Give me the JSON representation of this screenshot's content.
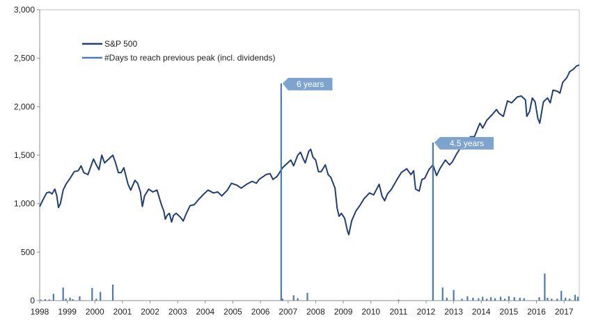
{
  "chart_data": {
    "type": "line",
    "title": "",
    "xlabel": "",
    "ylabel": "",
    "ylim": [
      0,
      3000
    ],
    "xlim": [
      1998.0,
      2017.55
    ],
    "grid": false,
    "legend_position": "top-left",
    "y_ticks": [
      {
        "value": 0,
        "label": "0"
      },
      {
        "value": 500,
        "label": "500"
      },
      {
        "value": 1000,
        "label": "1,000"
      },
      {
        "value": 1500,
        "label": "1,500"
      },
      {
        "value": 2000,
        "label": "2,000"
      },
      {
        "value": 2500,
        "label": "2,500"
      },
      {
        "value": 3000,
        "label": "3,000"
      }
    ],
    "x_ticks": [
      {
        "value": 1998,
        "label": "1998"
      },
      {
        "value": 1999,
        "label": "1999"
      },
      {
        "value": 2000,
        "label": "2000"
      },
      {
        "value": 2001,
        "label": "2001"
      },
      {
        "value": 2002,
        "label": "2002"
      },
      {
        "value": 2003,
        "label": "2003"
      },
      {
        "value": 2004,
        "label": "2004"
      },
      {
        "value": 2005,
        "label": "2005"
      },
      {
        "value": 2006,
        "label": "2006"
      },
      {
        "value": 2007,
        "label": "2007"
      },
      {
        "value": 2008,
        "label": "2008"
      },
      {
        "value": 2009,
        "label": "2009"
      },
      {
        "value": 2010,
        "label": "2010"
      },
      {
        "value": 2011,
        "label": "2011"
      },
      {
        "value": 2012,
        "label": "2012"
      },
      {
        "value": 2013,
        "label": "2013"
      },
      {
        "value": 2014,
        "label": "2014"
      },
      {
        "value": 2015,
        "label": "2015"
      },
      {
        "value": 2016,
        "label": "2016"
      },
      {
        "value": 2017,
        "label": "2017"
      }
    ],
    "series": [
      {
        "name": "S&P 500",
        "color": "#1f3e73",
        "points": [
          [
            1998.0,
            970
          ],
          [
            1998.12,
            1040
          ],
          [
            1998.25,
            1110
          ],
          [
            1998.35,
            1120
          ],
          [
            1998.45,
            1100
          ],
          [
            1998.55,
            1150
          ],
          [
            1998.62,
            1080
          ],
          [
            1998.68,
            960
          ],
          [
            1998.75,
            1000
          ],
          [
            1998.85,
            1140
          ],
          [
            1998.95,
            1200
          ],
          [
            1999.1,
            1260
          ],
          [
            1999.25,
            1330
          ],
          [
            1999.4,
            1340
          ],
          [
            1999.5,
            1390
          ],
          [
            1999.6,
            1320
          ],
          [
            1999.75,
            1300
          ],
          [
            1999.85,
            1380
          ],
          [
            1999.95,
            1460
          ],
          [
            2000.05,
            1400
          ],
          [
            2000.15,
            1350
          ],
          [
            2000.25,
            1500
          ],
          [
            2000.35,
            1420
          ],
          [
            2000.5,
            1460
          ],
          [
            2000.65,
            1500
          ],
          [
            2000.75,
            1420
          ],
          [
            2000.85,
            1320
          ],
          [
            2000.95,
            1320
          ],
          [
            2001.05,
            1370
          ],
          [
            2001.2,
            1200
          ],
          [
            2001.3,
            1140
          ],
          [
            2001.45,
            1240
          ],
          [
            2001.55,
            1210
          ],
          [
            2001.65,
            1120
          ],
          [
            2001.72,
            970
          ],
          [
            2001.8,
            1080
          ],
          [
            2001.95,
            1150
          ],
          [
            2002.1,
            1120
          ],
          [
            2002.25,
            1140
          ],
          [
            2002.4,
            1000
          ],
          [
            2002.5,
            920
          ],
          [
            2002.55,
            840
          ],
          [
            2002.62,
            880
          ],
          [
            2002.7,
            900
          ],
          [
            2002.78,
            810
          ],
          [
            2002.85,
            880
          ],
          [
            2002.95,
            900
          ],
          [
            2003.1,
            860
          ],
          [
            2003.2,
            820
          ],
          [
            2003.3,
            890
          ],
          [
            2003.45,
            980
          ],
          [
            2003.6,
            990
          ],
          [
            2003.75,
            1040
          ],
          [
            2003.95,
            1100
          ],
          [
            2004.1,
            1140
          ],
          [
            2004.3,
            1110
          ],
          [
            2004.45,
            1120
          ],
          [
            2004.6,
            1080
          ],
          [
            2004.8,
            1140
          ],
          [
            2004.95,
            1210
          ],
          [
            2005.15,
            1190
          ],
          [
            2005.3,
            1160
          ],
          [
            2005.5,
            1200
          ],
          [
            2005.7,
            1230
          ],
          [
            2005.85,
            1210
          ],
          [
            2005.95,
            1250
          ],
          [
            2006.2,
            1300
          ],
          [
            2006.35,
            1310
          ],
          [
            2006.45,
            1250
          ],
          [
            2006.6,
            1280
          ],
          [
            2006.8,
            1370
          ],
          [
            2006.95,
            1410
          ],
          [
            2007.1,
            1450
          ],
          [
            2007.2,
            1390
          ],
          [
            2007.35,
            1500
          ],
          [
            2007.45,
            1530
          ],
          [
            2007.55,
            1460
          ],
          [
            2007.62,
            1420
          ],
          [
            2007.75,
            1540
          ],
          [
            2007.82,
            1560
          ],
          [
            2007.9,
            1480
          ],
          [
            2008.0,
            1450
          ],
          [
            2008.1,
            1330
          ],
          [
            2008.2,
            1330
          ],
          [
            2008.35,
            1400
          ],
          [
            2008.45,
            1300
          ],
          [
            2008.55,
            1270
          ],
          [
            2008.7,
            1160
          ],
          [
            2008.78,
            950
          ],
          [
            2008.85,
            870
          ],
          [
            2008.93,
            900
          ],
          [
            2009.05,
            850
          ],
          [
            2009.15,
            720
          ],
          [
            2009.2,
            680
          ],
          [
            2009.3,
            820
          ],
          [
            2009.45,
            920
          ],
          [
            2009.6,
            980
          ],
          [
            2009.75,
            1050
          ],
          [
            2009.95,
            1110
          ],
          [
            2010.1,
            1090
          ],
          [
            2010.3,
            1200
          ],
          [
            2010.4,
            1080
          ],
          [
            2010.5,
            1030
          ],
          [
            2010.6,
            1100
          ],
          [
            2010.75,
            1150
          ],
          [
            2010.95,
            1250
          ],
          [
            2011.1,
            1320
          ],
          [
            2011.3,
            1360
          ],
          [
            2011.45,
            1300
          ],
          [
            2011.55,
            1340
          ],
          [
            2011.62,
            1150
          ],
          [
            2011.75,
            1130
          ],
          [
            2011.85,
            1250
          ],
          [
            2011.95,
            1260
          ],
          [
            2012.1,
            1350
          ],
          [
            2012.25,
            1400
          ],
          [
            2012.38,
            1290
          ],
          [
            2012.5,
            1360
          ],
          [
            2012.7,
            1450
          ],
          [
            2012.85,
            1400
          ],
          [
            2012.95,
            1430
          ],
          [
            2013.1,
            1510
          ],
          [
            2013.3,
            1600
          ],
          [
            2013.45,
            1620
          ],
          [
            2013.5,
            1580
          ],
          [
            2013.6,
            1690
          ],
          [
            2013.75,
            1690
          ],
          [
            2013.95,
            1830
          ],
          [
            2014.05,
            1780
          ],
          [
            2014.2,
            1860
          ],
          [
            2014.4,
            1920
          ],
          [
            2014.55,
            1970
          ],
          [
            2014.65,
            1930
          ],
          [
            2014.8,
            1900
          ],
          [
            2014.95,
            2060
          ],
          [
            2015.1,
            2040
          ],
          [
            2015.3,
            2100
          ],
          [
            2015.45,
            2110
          ],
          [
            2015.6,
            2070
          ],
          [
            2015.65,
            1900
          ],
          [
            2015.75,
            1950
          ],
          [
            2015.85,
            2090
          ],
          [
            2015.95,
            2050
          ],
          [
            2016.05,
            1880
          ],
          [
            2016.12,
            1830
          ],
          [
            2016.25,
            2050
          ],
          [
            2016.4,
            2090
          ],
          [
            2016.5,
            2040
          ],
          [
            2016.6,
            2170
          ],
          [
            2016.75,
            2160
          ],
          [
            2016.85,
            2140
          ],
          [
            2016.95,
            2250
          ],
          [
            2017.1,
            2300
          ],
          [
            2017.2,
            2360
          ],
          [
            2017.35,
            2390
          ],
          [
            2017.45,
            2420
          ],
          [
            2017.55,
            2430
          ]
        ]
      },
      {
        "name": "#Days to reach previous peak (incl. dividends)",
        "color": "#4a7ab5",
        "spikes": [
          [
            1998.05,
            10
          ],
          [
            1998.2,
            15
          ],
          [
            1998.35,
            12
          ],
          [
            1998.5,
            70
          ],
          [
            1998.85,
            135
          ],
          [
            1998.95,
            20
          ],
          [
            1999.1,
            30
          ],
          [
            1999.2,
            15
          ],
          [
            1999.45,
            45
          ],
          [
            1999.9,
            130
          ],
          [
            2000.05,
            20
          ],
          [
            2000.2,
            90
          ],
          [
            2000.65,
            165
          ],
          [
            2006.75,
            2240
          ],
          [
            2006.8,
            20
          ],
          [
            2007.2,
            55
          ],
          [
            2007.35,
            25
          ],
          [
            2007.7,
            80
          ],
          [
            2011.0,
            10
          ],
          [
            2012.25,
            1630
          ],
          [
            2012.6,
            135
          ],
          [
            2012.75,
            30
          ],
          [
            2013.0,
            110
          ],
          [
            2013.3,
            20
          ],
          [
            2013.5,
            45
          ],
          [
            2013.7,
            30
          ],
          [
            2013.9,
            25
          ],
          [
            2014.05,
            40
          ],
          [
            2014.2,
            20
          ],
          [
            2014.35,
            35
          ],
          [
            2014.5,
            25
          ],
          [
            2014.7,
            40
          ],
          [
            2014.85,
            20
          ],
          [
            2015.0,
            45
          ],
          [
            2015.2,
            35
          ],
          [
            2015.4,
            30
          ],
          [
            2015.55,
            25
          ],
          [
            2016.1,
            35
          ],
          [
            2016.3,
            280
          ],
          [
            2016.4,
            30
          ],
          [
            2016.55,
            20
          ],
          [
            2016.75,
            20
          ],
          [
            2016.9,
            100
          ],
          [
            2017.05,
            30
          ],
          [
            2017.2,
            20
          ],
          [
            2017.4,
            60
          ],
          [
            2017.5,
            40
          ]
        ]
      }
    ],
    "annotations": [
      {
        "text": "6 years",
        "x": 2006.75,
        "y": 2240
      },
      {
        "text": "4.5 years",
        "x": 2012.25,
        "y": 1630
      }
    ]
  }
}
